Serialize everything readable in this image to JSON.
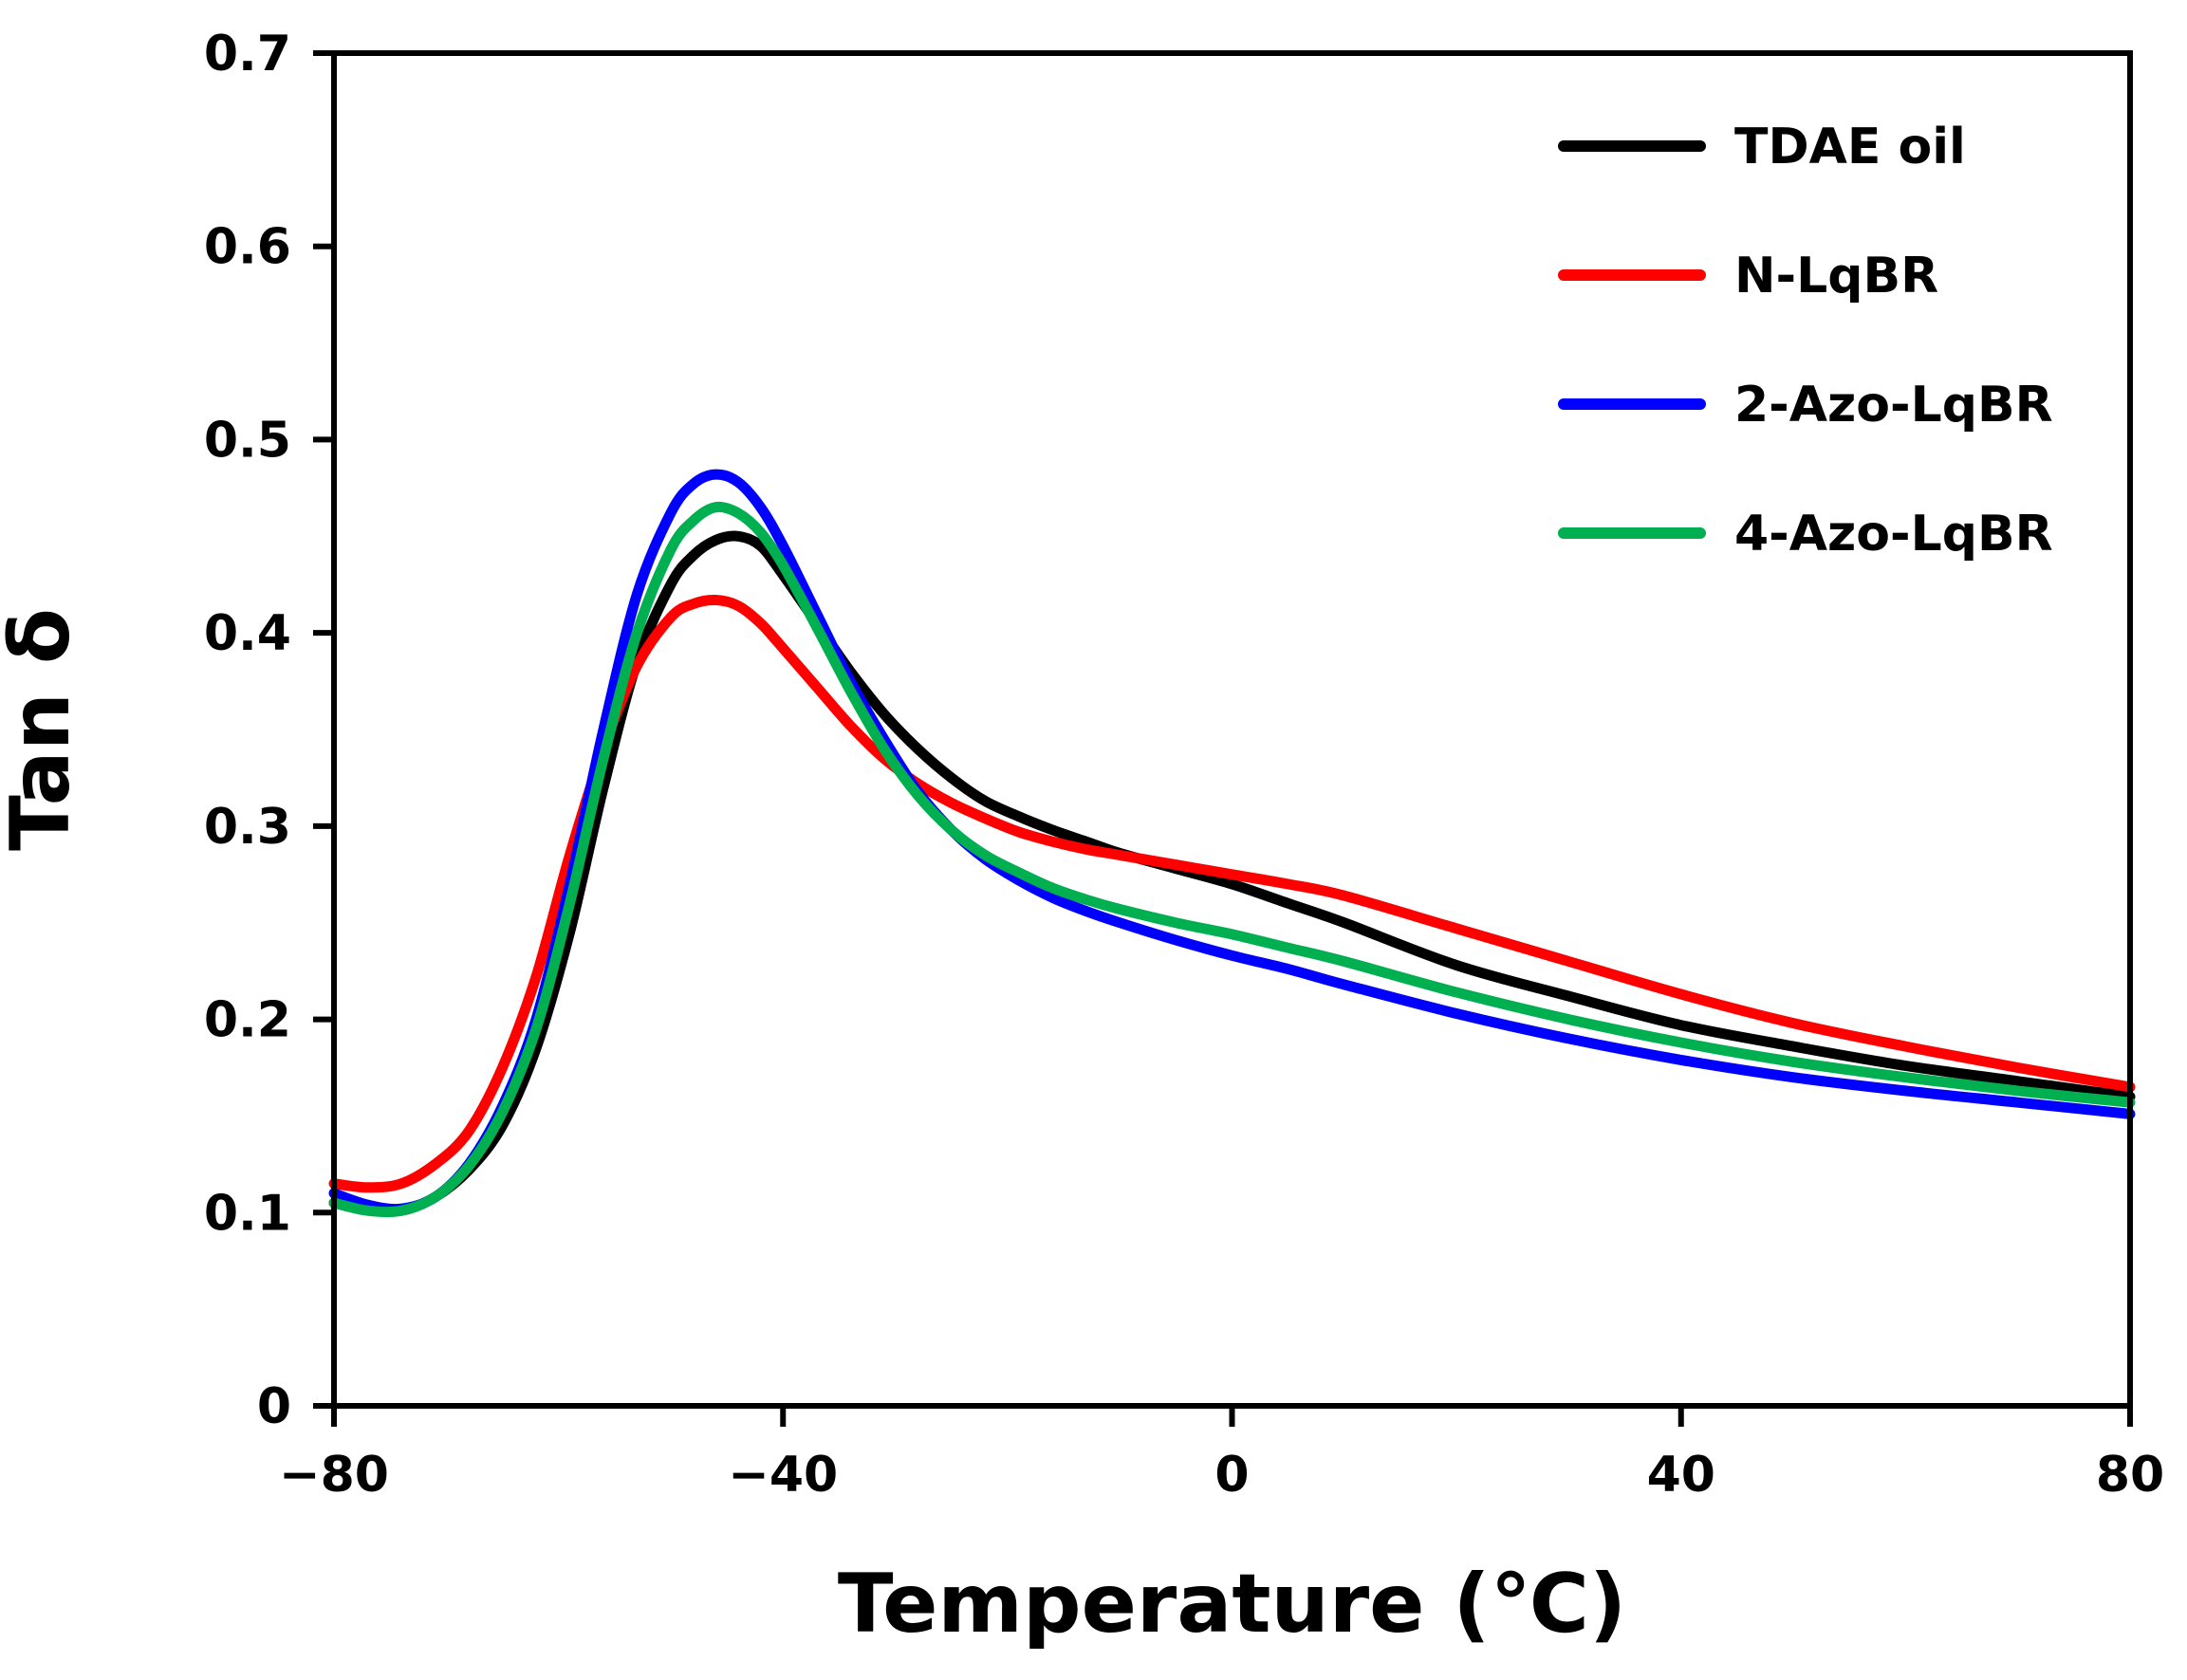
{
  "chart_data": {
    "type": "line",
    "title": "",
    "xlabel": "Temperature (℃)",
    "ylabel": "Tan δ",
    "xlim": [
      -80,
      80
    ],
    "ylim": [
      0,
      0.7
    ],
    "xticks": [
      -80,
      -40,
      0,
      40,
      80
    ],
    "xtick_labels": [
      "−80",
      "−40",
      "0",
      "40",
      "80"
    ],
    "yticks": [
      0,
      0.1,
      0.2,
      0.3,
      0.4,
      0.5,
      0.6,
      0.7
    ],
    "ytick_labels": [
      "0",
      "0.1",
      "0.2",
      "0.3",
      "0.4",
      "0.5",
      "0.6",
      "0.7"
    ],
    "grid": false,
    "legend_position": "top-right",
    "series": [
      {
        "name": "TDAE oil",
        "color": "#000000",
        "x": [
          -80,
          -77,
          -74,
          -71,
          -68,
          -65,
          -62,
          -59,
          -56,
          -53,
          -50,
          -48,
          -46,
          -44,
          -42,
          -40,
          -37,
          -34,
          -31,
          -28,
          -25,
          -22,
          -19,
          -16,
          -13,
          -10,
          -5,
          0,
          5,
          10,
          20,
          30,
          40,
          50,
          60,
          70,
          80
        ],
        "y": [
          0.105,
          0.102,
          0.101,
          0.108,
          0.122,
          0.145,
          0.185,
          0.245,
          0.32,
          0.385,
          0.425,
          0.44,
          0.448,
          0.45,
          0.445,
          0.43,
          0.405,
          0.38,
          0.358,
          0.34,
          0.325,
          0.313,
          0.305,
          0.298,
          0.292,
          0.286,
          0.278,
          0.27,
          0.26,
          0.25,
          0.228,
          0.212,
          0.197,
          0.186,
          0.176,
          0.168,
          0.16
        ]
      },
      {
        "name": "N-LqBR",
        "color": "#ff0000",
        "x": [
          -80,
          -77,
          -74,
          -71,
          -68,
          -65,
          -62,
          -59,
          -56,
          -53,
          -50,
          -48,
          -46,
          -44,
          -42,
          -40,
          -37,
          -34,
          -31,
          -28,
          -25,
          -22,
          -19,
          -16,
          -13,
          -10,
          -5,
          0,
          5,
          10,
          20,
          30,
          40,
          50,
          60,
          70,
          80
        ],
        "y": [
          0.115,
          0.113,
          0.115,
          0.125,
          0.142,
          0.175,
          0.222,
          0.285,
          0.34,
          0.383,
          0.408,
          0.415,
          0.417,
          0.414,
          0.405,
          0.392,
          0.372,
          0.352,
          0.335,
          0.322,
          0.312,
          0.304,
          0.297,
          0.292,
          0.288,
          0.285,
          0.28,
          0.275,
          0.27,
          0.264,
          0.247,
          0.23,
          0.213,
          0.198,
          0.186,
          0.175,
          0.165
        ]
      },
      {
        "name": "2-Azo-LqBR",
        "color": "#0000ff",
        "x": [
          -80,
          -77,
          -74,
          -71,
          -68,
          -65,
          -62,
          -59,
          -56,
          -53,
          -50,
          -48,
          -46,
          -44,
          -42,
          -40,
          -37,
          -34,
          -31,
          -28,
          -25,
          -22,
          -19,
          -16,
          -13,
          -10,
          -5,
          0,
          5,
          10,
          20,
          30,
          40,
          50,
          60,
          70,
          80
        ],
        "y": [
          0.11,
          0.104,
          0.102,
          0.108,
          0.125,
          0.155,
          0.2,
          0.27,
          0.35,
          0.42,
          0.462,
          0.477,
          0.482,
          0.478,
          0.465,
          0.445,
          0.41,
          0.375,
          0.345,
          0.318,
          0.298,
          0.283,
          0.272,
          0.263,
          0.256,
          0.25,
          0.241,
          0.233,
          0.226,
          0.218,
          0.203,
          0.19,
          0.179,
          0.17,
          0.163,
          0.157,
          0.151
        ]
      },
      {
        "name": "4-Azo-LqBR",
        "color": "#00b050",
        "x": [
          -80,
          -77,
          -74,
          -71,
          -68,
          -65,
          -62,
          -59,
          -56,
          -53,
          -50,
          -48,
          -46,
          -44,
          -42,
          -40,
          -37,
          -34,
          -31,
          -28,
          -25,
          -22,
          -19,
          -16,
          -13,
          -10,
          -5,
          0,
          5,
          10,
          20,
          30,
          40,
          50,
          60,
          70,
          80
        ],
        "y": [
          0.105,
          0.101,
          0.101,
          0.108,
          0.124,
          0.152,
          0.195,
          0.26,
          0.335,
          0.4,
          0.443,
          0.458,
          0.465,
          0.462,
          0.452,
          0.435,
          0.403,
          0.37,
          0.34,
          0.316,
          0.298,
          0.285,
          0.276,
          0.268,
          0.262,
          0.257,
          0.25,
          0.244,
          0.237,
          0.23,
          0.214,
          0.2,
          0.188,
          0.178,
          0.17,
          0.163,
          0.157
        ]
      }
    ]
  }
}
